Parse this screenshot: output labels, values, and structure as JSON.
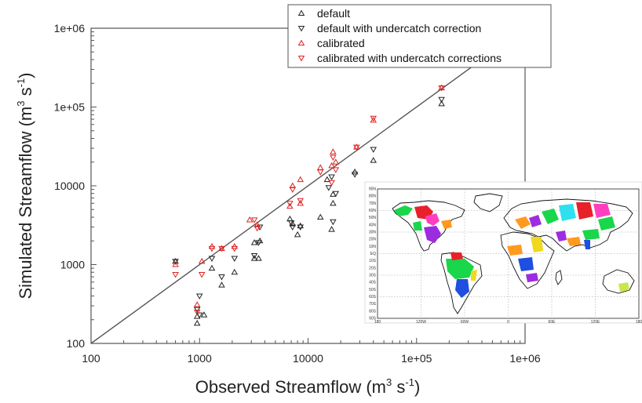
{
  "chart_data": {
    "type": "scatter",
    "scale": "log-log",
    "xlabel": "Observed Streamflow (m",
    "xlabel_sup1": "3",
    "xlabel_mid": " s",
    "xlabel_sup2": "-1",
    "xlabel_end": ")",
    "ylabel": "Simulated Streamflow (m",
    "ylabel_sup1": "3",
    "ylabel_mid": " s",
    "ylabel_sup2": "-1",
    "ylabel_end": ")",
    "xlim": [
      100,
      1000000
    ],
    "ylim": [
      100,
      1000000
    ],
    "x_ticks": [
      {
        "value": 100,
        "label": "100"
      },
      {
        "value": 1000,
        "label": "1000"
      },
      {
        "value": 10000,
        "label": "10000"
      },
      {
        "value": 100000,
        "label": "1e+05"
      },
      {
        "value": 1000000,
        "label": "1e+06"
      }
    ],
    "y_ticks": [
      {
        "value": 100,
        "label": "100"
      },
      {
        "value": 1000,
        "label": "1000"
      },
      {
        "value": 10000,
        "label": "10000"
      },
      {
        "value": 100000,
        "label": "1e+05"
      },
      {
        "value": 1000000,
        "label": "1e+06"
      }
    ],
    "reference_line": "1:1",
    "legend_position": "top-right",
    "series": [
      {
        "name": "default",
        "marker": "triangle-up",
        "color": "#222222",
        "points": [
          [
            600,
            1100
          ],
          [
            950,
            220
          ],
          [
            950,
            180
          ],
          [
            1100,
            230
          ],
          [
            1300,
            900
          ],
          [
            1600,
            550
          ],
          [
            2100,
            800
          ],
          [
            3200,
            1200
          ],
          [
            3200,
            1900
          ],
          [
            3500,
            1200
          ],
          [
            3600,
            2000
          ],
          [
            6800,
            3800
          ],
          [
            7200,
            3300
          ],
          [
            8000,
            2400
          ],
          [
            8500,
            3100
          ],
          [
            13000,
            4000
          ],
          [
            15000,
            12000
          ],
          [
            16500,
            2800
          ],
          [
            17000,
            7800
          ],
          [
            17000,
            6000
          ],
          [
            27000,
            15000
          ],
          [
            40000,
            21000
          ],
          [
            170000,
            110000
          ]
        ]
      },
      {
        "name": "default with undercatch correction",
        "marker": "triangle-down",
        "color": "#222222",
        "points": [
          [
            600,
            1100
          ],
          [
            950,
            270
          ],
          [
            1000,
            400
          ],
          [
            1000,
            230
          ],
          [
            1300,
            1200
          ],
          [
            1600,
            700
          ],
          [
            2100,
            1200
          ],
          [
            3200,
            1300
          ],
          [
            3500,
            1900
          ],
          [
            3600,
            3000
          ],
          [
            7000,
            3400
          ],
          [
            7200,
            3000
          ],
          [
            8500,
            3000
          ],
          [
            15500,
            9500
          ],
          [
            16500,
            13000
          ],
          [
            17000,
            3500
          ],
          [
            18000,
            8000
          ],
          [
            27000,
            14000
          ],
          [
            40000,
            29000
          ],
          [
            170000,
            125000
          ]
        ]
      },
      {
        "name": "calibrated",
        "marker": "triangle-up",
        "color": "#e02020",
        "points": [
          [
            600,
            1000
          ],
          [
            950,
            310
          ],
          [
            1050,
            1100
          ],
          [
            1300,
            1700
          ],
          [
            1600,
            1600
          ],
          [
            2100,
            1700
          ],
          [
            2900,
            3700
          ],
          [
            3400,
            3200
          ],
          [
            6800,
            5500
          ],
          [
            7200,
            10000
          ],
          [
            8500,
            12000
          ],
          [
            8500,
            6000
          ],
          [
            13000,
            17000
          ],
          [
            16500,
            18000
          ],
          [
            17000,
            27000
          ],
          [
            18000,
            20000
          ],
          [
            28000,
            31000
          ],
          [
            40000,
            68000
          ],
          [
            170000,
            175000
          ]
        ]
      },
      {
        "name": "calibrated with undercatch corrections",
        "marker": "triangle-down",
        "color": "#e02020",
        "points": [
          [
            600,
            750
          ],
          [
            950,
            250
          ],
          [
            1050,
            750
          ],
          [
            1300,
            1600
          ],
          [
            1600,
            1600
          ],
          [
            2100,
            1600
          ],
          [
            3200,
            3700
          ],
          [
            3400,
            2900
          ],
          [
            6800,
            6000
          ],
          [
            7200,
            9000
          ],
          [
            8500,
            6500
          ],
          [
            13000,
            15000
          ],
          [
            16500,
            11000
          ],
          [
            17000,
            23000
          ],
          [
            18000,
            16000
          ],
          [
            28000,
            31000
          ],
          [
            40000,
            72000
          ],
          [
            170000,
            175000
          ]
        ]
      }
    ]
  },
  "inset_map": {
    "lat_labels": [
      "90N",
      "80N",
      "70N",
      "60N",
      "50N",
      "40N",
      "30N",
      "20N",
      "10N",
      "EQ",
      "10S",
      "20S",
      "30S",
      "40S",
      "50S",
      "60S",
      "70S",
      "80S",
      "90S"
    ],
    "lon_labels": [
      "180",
      "120W",
      "60W",
      "0",
      "60E",
      "120E",
      "180"
    ],
    "basin_colors": [
      "#e8202a",
      "#1f4fe0",
      "#19d64b",
      "#ff9a1f",
      "#9d2be0",
      "#c6e84a",
      "#2ee0f0",
      "#ff3fc0",
      "#f0d81f",
      "#8a3a1f"
    ]
  }
}
